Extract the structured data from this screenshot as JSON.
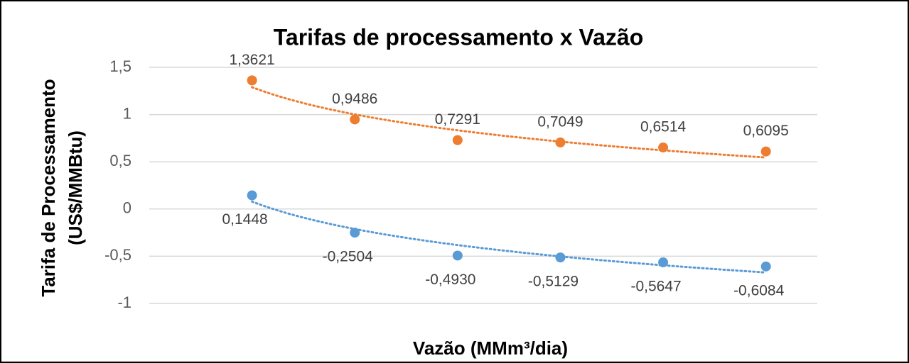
{
  "chart_data": {
    "type": "scatter",
    "title": "Tarifas de processamento x Vazão",
    "x_label": "Vazão (MMm³/dia)",
    "y_label": [
      "Tarifa de Processamento",
      "(US$/MMBtu)"
    ],
    "categories": [
      null,
      null,
      null,
      null,
      null,
      null
    ],
    "series": [
      {
        "color": "#ed7d31",
        "values": [
          1.3621,
          0.9486,
          0.7291,
          0.7049,
          0.6514,
          0.6095
        ],
        "value_labels": [
          "1,3621",
          "0,9486",
          "0,7291",
          "0,7049",
          "0,6514",
          "0,6095"
        ]
      },
      {
        "color": "#5b9bd5",
        "values": [
          0.1448,
          -0.2504,
          -0.493,
          -0.5129,
          -0.5647,
          -0.6084
        ],
        "value_labels": [
          "0,1448",
          "-0,2504",
          "-0,4930",
          "-0,5129",
          "-0,5647",
          "-0,6084"
        ]
      }
    ],
    "ylim": [
      -1,
      1.5
    ],
    "yticks": [
      {
        "value": 1.5,
        "label": "1,5"
      },
      1,
      {
        "value": 0.5,
        "label": "0,5"
      },
      0,
      {
        "value": -0.5,
        "label": "-0,5"
      },
      -1
    ],
    "grid": true,
    "trendline": "logarithmic"
  }
}
